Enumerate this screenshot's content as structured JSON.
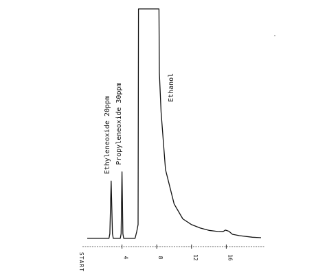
{
  "chart_data": {
    "type": "line",
    "title": "",
    "xlabel": "",
    "ylabel": "",
    "start_label": "START",
    "x_ticks": [
      4,
      8,
      12,
      16
    ],
    "x_tick_labels": [
      "4",
      "8",
      "12",
      "16"
    ],
    "xlim": [
      0,
      20
    ],
    "ylim": [
      0,
      100
    ],
    "grid": false,
    "series": [
      {
        "x": [
          0,
          1.0,
          2.0,
          2.5,
          2.6,
          2.75,
          2.9,
          3.0,
          3.5,
          3.8,
          3.9,
          4.0,
          4.1,
          4.2,
          4.5,
          5.5,
          5.7,
          5.85,
          5.9,
          8.25,
          8.3,
          8.5,
          9.0,
          10.0,
          11.0,
          12.0,
          13.0,
          14.0,
          15.0,
          15.6,
          15.9,
          16.3,
          16.7,
          17.5,
          19.0,
          20.0
        ],
        "y": [
          0,
          0,
          0,
          0,
          2,
          25,
          2,
          0,
          0,
          0,
          2,
          29,
          2,
          0,
          0,
          0,
          3,
          6,
          100,
          100,
          72,
          55,
          30,
          15,
          8.5,
          6,
          4.5,
          3.5,
          3,
          2.9,
          3.6,
          3.1,
          1.8,
          1.2,
          0.5,
          0.3
        ]
      }
    ],
    "annotations": [
      {
        "text": "Ethyleneoxide 20ppm",
        "x": 2.75,
        "y": 25
      },
      {
        "text": "Propyleneoxide 30ppm",
        "x": 4.1,
        "y": 29
      },
      {
        "text": "Ethanol",
        "x": 8.3,
        "y": 72
      }
    ]
  }
}
